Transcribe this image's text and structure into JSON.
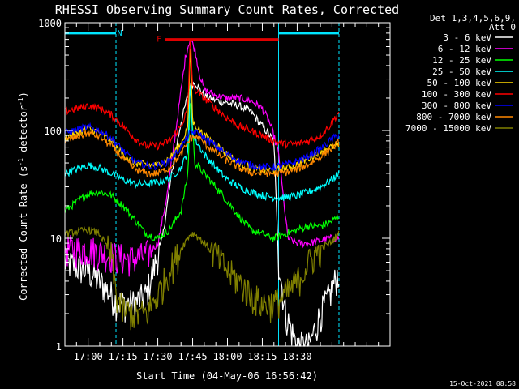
{
  "chart_data": {
    "type": "line",
    "title": "RHESSI Observing Summary Count Rates, Corrected",
    "xlabel": "Start Time (04-May-06 16:56:42)",
    "ylabel_main": "Corrected Count Rate (s",
    "ylabel_sup1": "-1",
    "ylabel_mid": " detector",
    "ylabel_sup2": "-1",
    "ylabel_end": ")",
    "ylog": true,
    "ylim": [
      1,
      1000
    ],
    "xlim": [
      -10,
      130
    ],
    "xtick_values": [
      0,
      15,
      30,
      45,
      60,
      75,
      90
    ],
    "xticks": [
      "17:00",
      "17:15",
      "17:30",
      "17:45",
      "18:00",
      "18:15",
      "18:30"
    ],
    "ytick_values": [
      1,
      10,
      100,
      1000
    ],
    "yticks": [
      "1",
      "10",
      "100",
      "1000"
    ],
    "legend_header": [
      "Det 1,3,4,5,6,9,",
      "Att 0"
    ],
    "legend_position": "right",
    "annotations": [
      {
        "text": "N",
        "color": "#00e5ff",
        "type": "bar",
        "x_start": -10,
        "x_end": 12,
        "x_start2": 82,
        "x_end2": 108,
        "y": 800
      },
      {
        "text": "F",
        "color": "#e00000",
        "type": "bar",
        "x_start": 33,
        "x_end": 82,
        "y": 700
      }
    ],
    "dividers": [
      {
        "x": 12,
        "color": "#00e5ff",
        "style": "dashed"
      },
      {
        "x": 82,
        "color": "#00e5ff",
        "style": "solid"
      },
      {
        "x": 108,
        "color": "#00e5ff",
        "style": "dashed"
      }
    ],
    "flare_peak": 43,
    "series": [
      {
        "name": "3 - 6 keV",
        "color": "#ffffff",
        "x": [
          -10,
          0,
          5,
          10,
          12,
          15,
          20,
          25,
          28,
          32,
          36,
          40,
          44,
          46,
          50,
          55,
          60,
          65,
          70,
          75,
          80,
          82,
          85,
          90,
          95,
          100,
          104,
          108
        ],
        "y": [
          6,
          5,
          4,
          3,
          2.6,
          2.5,
          2.5,
          3,
          5,
          10,
          40,
          120,
          260,
          280,
          210,
          190,
          180,
          170,
          150,
          110,
          80,
          6,
          2,
          1,
          1,
          2,
          3,
          5
        ]
      },
      {
        "name": "6 - 12 keV",
        "color": "#ff00ff",
        "x": [
          -10,
          0,
          5,
          10,
          15,
          20,
          25,
          30,
          34,
          38,
          42,
          44,
          46,
          48,
          50,
          55,
          60,
          65,
          70,
          75,
          78,
          80,
          82,
          86,
          90,
          95,
          100,
          104,
          108
        ],
        "y": [
          8,
          8,
          7.5,
          7,
          6.6,
          6.5,
          7,
          9,
          25,
          110,
          500,
          720,
          560,
          330,
          240,
          210,
          200,
          200,
          190,
          160,
          120,
          90,
          60,
          10,
          9,
          9,
          9.5,
          10,
          10
        ]
      },
      {
        "name": "12 - 25 keV",
        "color": "#00ff00",
        "x": [
          -10,
          0,
          5,
          10,
          15,
          20,
          25,
          30,
          35,
          40,
          43,
          44,
          46,
          50,
          55,
          60,
          65,
          70,
          75,
          80,
          85,
          90,
          95,
          100,
          104,
          108
        ],
        "y": [
          18,
          26,
          27,
          25,
          20,
          15,
          11,
          10,
          12,
          18,
          40,
          210,
          50,
          40,
          30,
          22,
          16,
          12,
          11,
          10,
          11,
          12,
          13,
          13,
          14,
          16
        ]
      },
      {
        "name": "25 - 50 keV",
        "color": "#00ffff",
        "x": [
          -10,
          0,
          5,
          10,
          15,
          20,
          25,
          30,
          35,
          40,
          43,
          44,
          45,
          50,
          55,
          60,
          65,
          70,
          75,
          80,
          85,
          90,
          95,
          100,
          104,
          108
        ],
        "y": [
          40,
          48,
          45,
          40,
          35,
          32,
          32,
          33,
          36,
          45,
          65,
          290,
          90,
          60,
          45,
          35,
          30,
          27,
          25,
          24,
          24,
          25,
          27,
          30,
          34,
          40
        ]
      },
      {
        "name": "50 - 100 keV",
        "color": "#ffd700",
        "x": [
          -10,
          0,
          5,
          10,
          15,
          20,
          25,
          30,
          35,
          40,
          43,
          44,
          45,
          50,
          55,
          60,
          65,
          70,
          75,
          80,
          85,
          90,
          95,
          100,
          104,
          108
        ],
        "y": [
          85,
          105,
          95,
          80,
          60,
          50,
          48,
          48,
          55,
          75,
          110,
          640,
          120,
          90,
          75,
          60,
          50,
          45,
          43,
          43,
          45,
          48,
          55,
          65,
          70,
          72
        ]
      },
      {
        "name": "100 - 300 keV",
        "color": "#ff0000",
        "x": [
          -10,
          0,
          5,
          10,
          15,
          20,
          25,
          30,
          35,
          40,
          43,
          44,
          45,
          50,
          55,
          60,
          65,
          70,
          75,
          80,
          85,
          90,
          95,
          100,
          104,
          108
        ],
        "y": [
          150,
          170,
          160,
          140,
          110,
          85,
          72,
          72,
          80,
          110,
          160,
          800,
          250,
          200,
          160,
          130,
          110,
          100,
          90,
          80,
          75,
          75,
          80,
          90,
          110,
          150
        ]
      },
      {
        "name": "300 - 800 keV",
        "color": "#0000ff",
        "x": [
          -10,
          0,
          5,
          10,
          15,
          20,
          25,
          30,
          35,
          40,
          44,
          46,
          48,
          50,
          55,
          60,
          65,
          70,
          75,
          80,
          85,
          90,
          95,
          100,
          104,
          108
        ],
        "y": [
          95,
          108,
          100,
          85,
          65,
          52,
          47,
          47,
          52,
          70,
          95,
          96,
          92,
          85,
          72,
          60,
          52,
          48,
          46,
          46,
          48,
          52,
          58,
          68,
          80,
          92
        ]
      },
      {
        "name": "800 - 7000 keV",
        "color": "#ff8800",
        "x": [
          -10,
          0,
          5,
          10,
          15,
          20,
          25,
          30,
          35,
          40,
          44,
          46,
          48,
          50,
          55,
          60,
          65,
          70,
          75,
          80,
          85,
          90,
          95,
          100,
          104,
          108
        ],
        "y": [
          80,
          95,
          88,
          72,
          55,
          44,
          40,
          40,
          45,
          60,
          85,
          88,
          84,
          76,
          62,
          52,
          45,
          41,
          40,
          40,
          41,
          44,
          49,
          57,
          66,
          78
        ]
      },
      {
        "name": "7000 - 15000 keV",
        "color": "#808000",
        "x": [
          -10,
          0,
          5,
          10,
          12,
          15,
          20,
          25,
          30,
          35,
          40,
          44,
          46,
          50,
          55,
          60,
          65,
          70,
          75,
          80,
          85,
          90,
          95,
          100,
          104,
          108
        ],
        "y": [
          11,
          12,
          11,
          7,
          3,
          2.2,
          2,
          2,
          3,
          5,
          8,
          11,
          11,
          9,
          7,
          5,
          4,
          3,
          2.5,
          2.5,
          3,
          4,
          6,
          8,
          9,
          11
        ]
      }
    ]
  },
  "footer_timestamp": "15-Oct-2021 08:58"
}
